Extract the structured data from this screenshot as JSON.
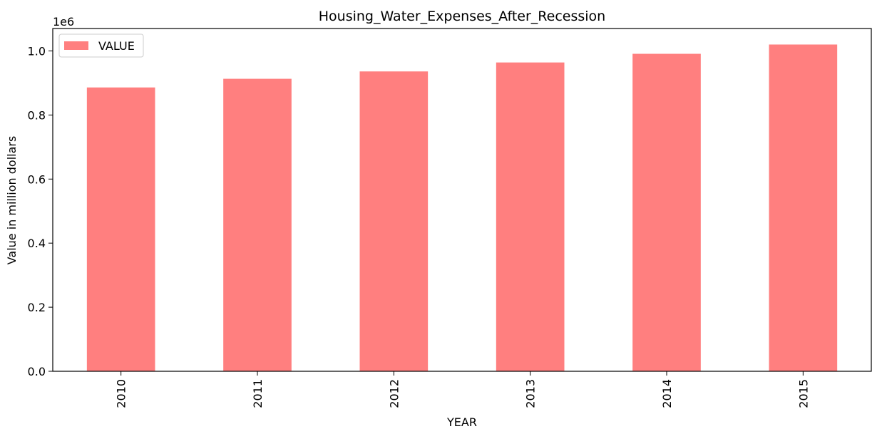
{
  "chart_data": {
    "type": "bar",
    "title": "Housing_Water_Expenses_After_Recession",
    "xlabel": "YEAR",
    "ylabel": "Value in million dollars",
    "offset_label": "1e6",
    "categories": [
      "2010",
      "2011",
      "2012",
      "2013",
      "2014",
      "2015"
    ],
    "series": [
      {
        "name": "VALUE",
        "values": [
          886000,
          913000,
          936000,
          964000,
          991000,
          1020000
        ]
      }
    ],
    "ylim": [
      0,
      1070000
    ],
    "yticks": [
      0,
      200000,
      400000,
      600000,
      800000,
      1000000
    ],
    "ytick_labels": [
      "0.0",
      "0.2",
      "0.4",
      "0.6",
      "0.8",
      "1.0"
    ],
    "grid": false,
    "legend_position": "top-left",
    "bar_color": "#ff7f7f"
  }
}
